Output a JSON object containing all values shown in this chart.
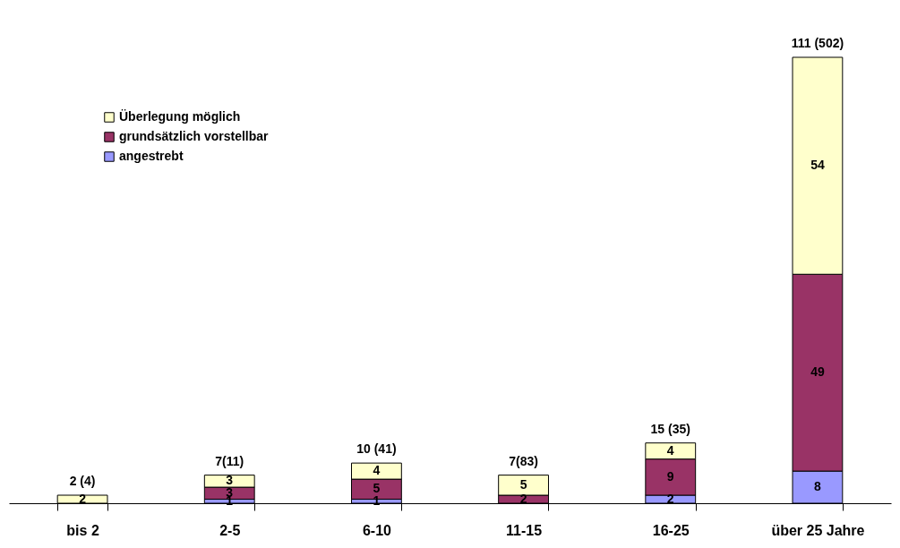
{
  "chart_data": {
    "type": "bar",
    "stacked": true,
    "categories": [
      "bis 2",
      "2-5",
      "6-10",
      "11-15",
      "16-25",
      "über 25 Jahre"
    ],
    "series": [
      {
        "name": "angestrebt",
        "color": "#9999ff",
        "values": [
          null,
          1,
          1,
          null,
          2,
          8
        ]
      },
      {
        "name": "grundsätzlich vorstellbar",
        "color": "#993366",
        "values": [
          null,
          3,
          5,
          2,
          9,
          49
        ]
      },
      {
        "name": "Überlegung möglich",
        "color": "#ffffcc",
        "values": [
          2,
          3,
          4,
          5,
          4,
          54
        ]
      }
    ],
    "data_labels": true,
    "totals": [
      "2 (4)",
      "7(11)",
      "10 (41)",
      "7(83)",
      "15 (35)",
      "111 (502)"
    ],
    "legend": "top left"
  }
}
